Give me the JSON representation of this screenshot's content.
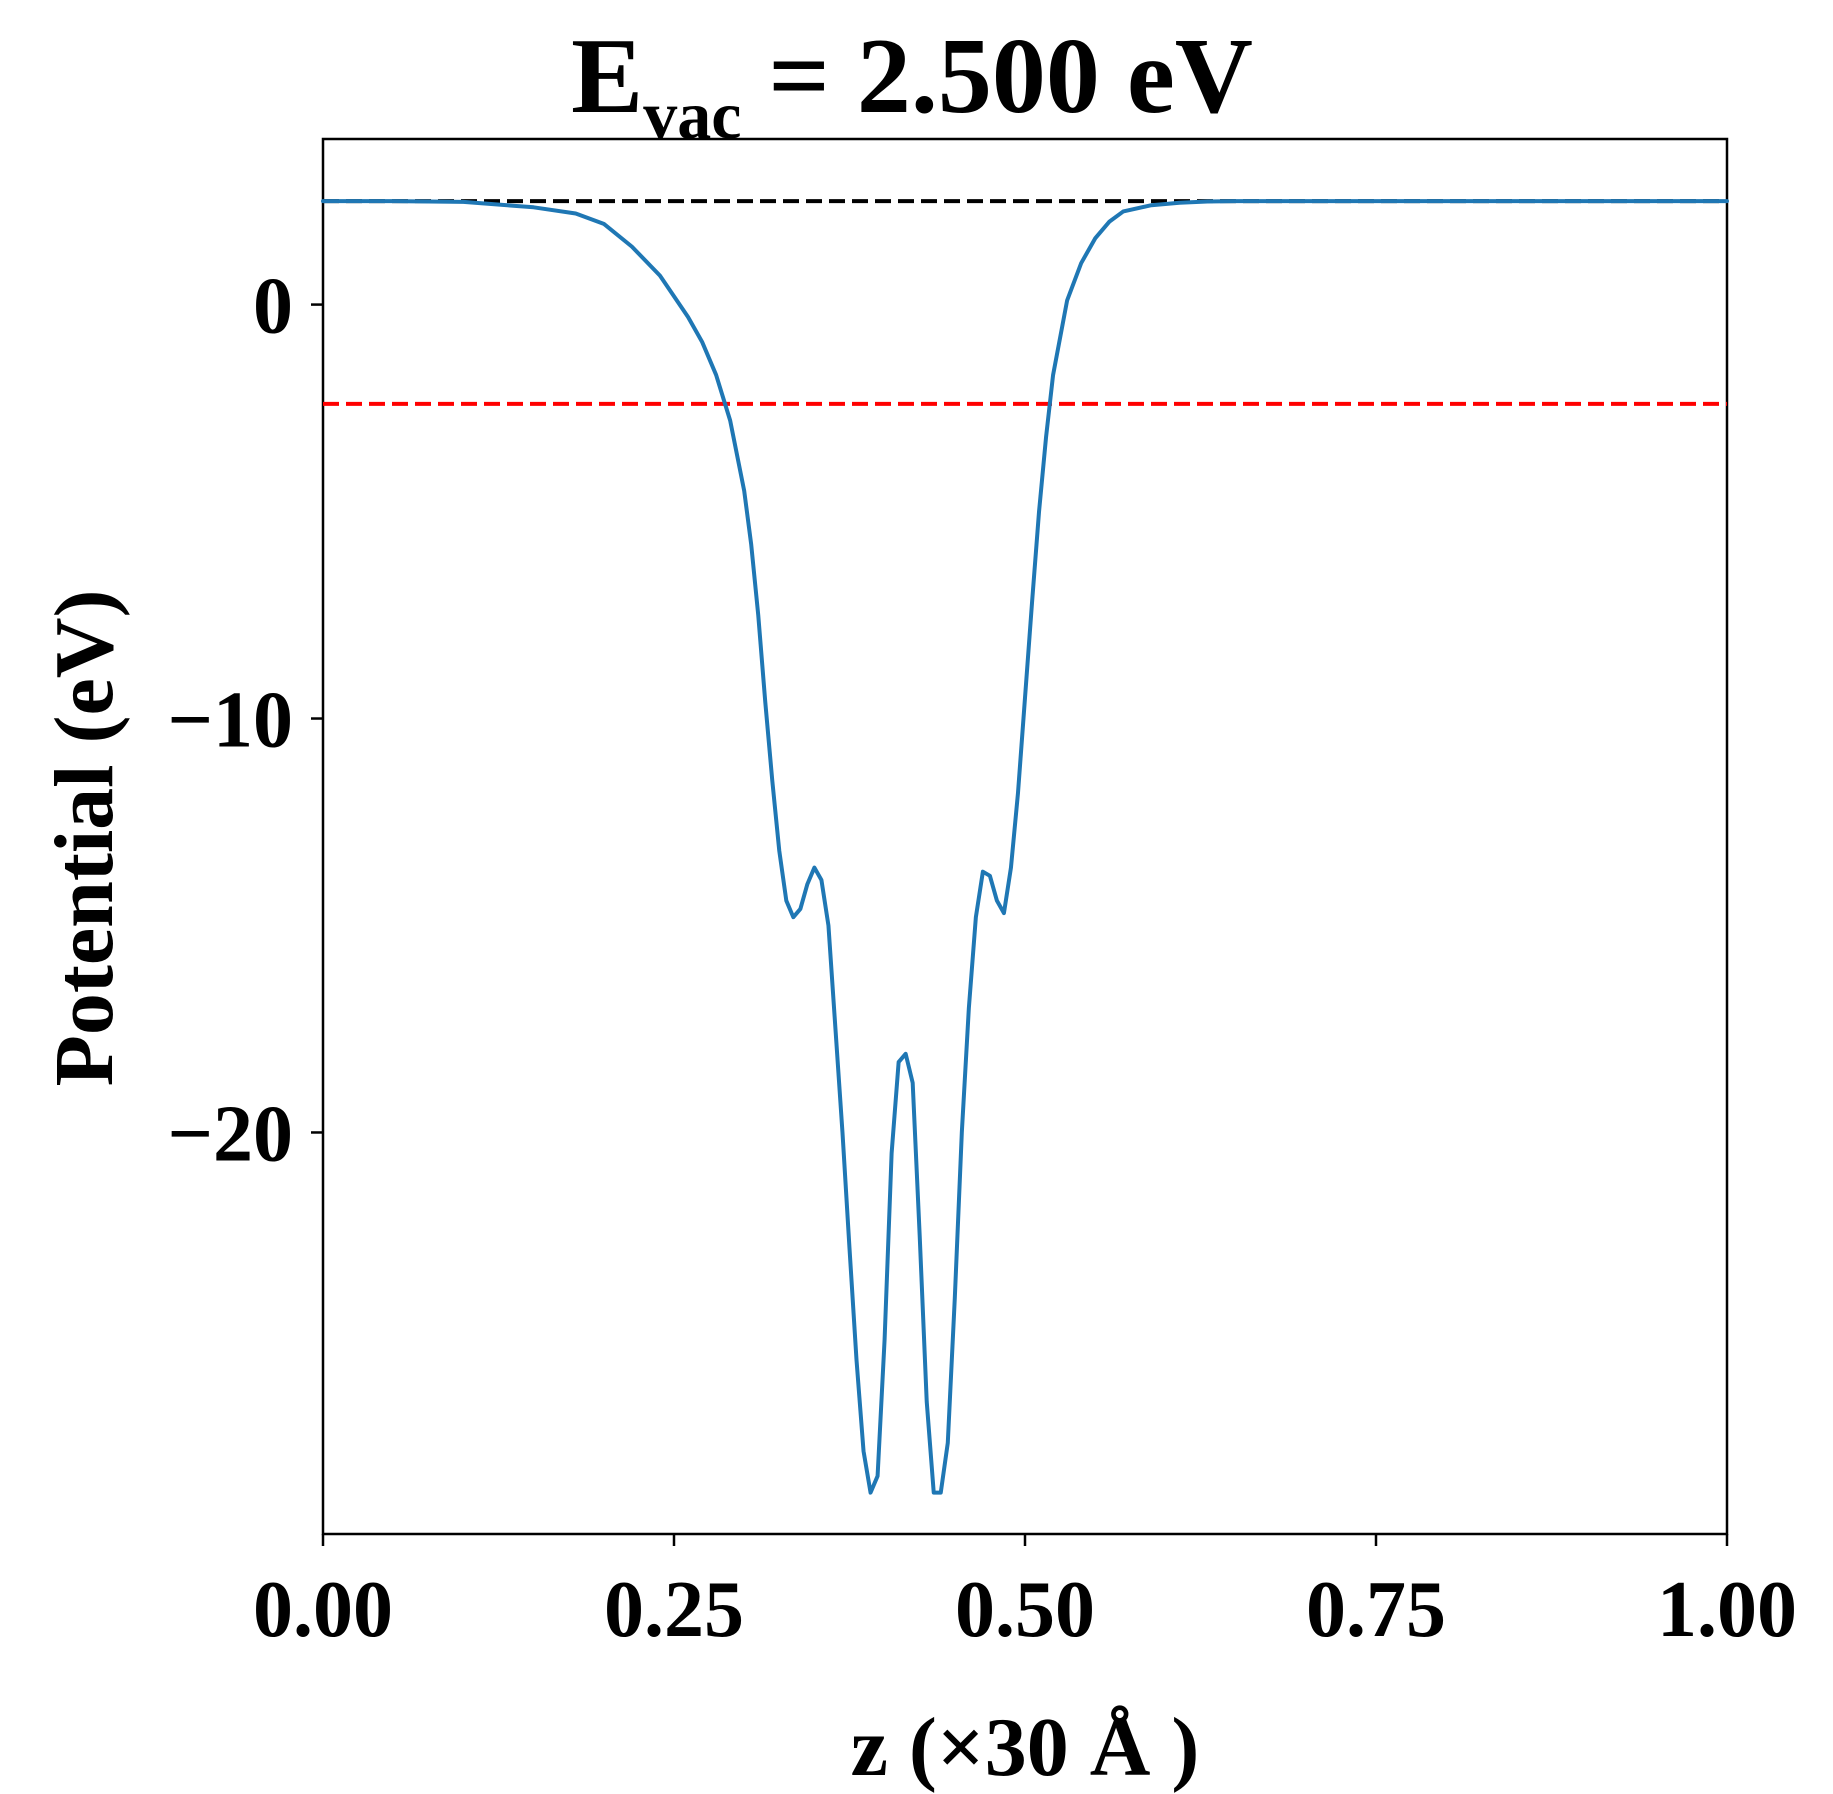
{
  "title": {
    "main": "E",
    "subscript": "vac",
    "rest": " = 2.500 eV"
  },
  "chart_data": {
    "type": "line",
    "title": "E_vac = 2.500 eV",
    "xlabel": "z (×30 Å )",
    "ylabel": "Potential (eV)",
    "xlim": [
      0.0,
      1.0
    ],
    "ylim": [
      -29.7,
      4.0
    ],
    "grid": false,
    "x_ticks": [
      0.0,
      0.25,
      0.5,
      0.75,
      1.0
    ],
    "x_tick_labels": [
      "0.00",
      "0.25",
      "0.50",
      "0.75",
      "1.00"
    ],
    "y_ticks": [
      0,
      -10,
      -20
    ],
    "y_tick_labels": [
      "0",
      "−10",
      "−20"
    ],
    "series": [
      {
        "color": "#1f77b4",
        "style": "solid",
        "x": [
          0.0,
          0.05,
          0.1,
          0.15,
          0.18,
          0.2,
          0.22,
          0.24,
          0.26,
          0.27,
          0.28,
          0.29,
          0.3,
          0.305,
          0.31,
          0.315,
          0.32,
          0.325,
          0.33,
          0.335,
          0.34,
          0.345,
          0.35,
          0.355,
          0.36,
          0.365,
          0.37,
          0.375,
          0.38,
          0.385,
          0.39,
          0.395,
          0.4,
          0.405,
          0.41,
          0.415,
          0.42,
          0.425,
          0.43,
          0.435,
          0.44,
          0.445,
          0.45,
          0.455,
          0.46,
          0.465,
          0.47,
          0.475,
          0.48,
          0.485,
          0.49,
          0.495,
          0.5,
          0.505,
          0.51,
          0.515,
          0.52,
          0.53,
          0.54,
          0.55,
          0.56,
          0.57,
          0.59,
          0.61,
          0.63,
          0.65,
          0.7,
          0.75,
          0.8,
          0.85,
          0.9,
          0.95,
          1.0
        ],
        "y": [
          2.5,
          2.5,
          2.48,
          2.35,
          2.2,
          1.95,
          1.4,
          0.7,
          -0.3,
          -0.9,
          -1.7,
          -2.8,
          -4.5,
          -5.8,
          -7.5,
          -9.6,
          -11.5,
          -13.2,
          -14.4,
          -14.8,
          -14.6,
          -14.0,
          -13.6,
          -13.9,
          -15.0,
          -17.5,
          -20.0,
          -22.8,
          -25.5,
          -27.7,
          -28.7,
          -28.3,
          -25.0,
          -20.5,
          -18.3,
          -18.1,
          -18.8,
          -22.5,
          -26.5,
          -28.7,
          -28.7,
          -27.5,
          -24.0,
          -20.0,
          -17.0,
          -14.8,
          -13.7,
          -13.8,
          -14.4,
          -14.7,
          -13.6,
          -11.8,
          -9.5,
          -7.2,
          -5.0,
          -3.2,
          -1.7,
          0.1,
          1.0,
          1.6,
          2.0,
          2.25,
          2.4,
          2.46,
          2.49,
          2.5,
          2.5,
          2.5,
          2.5,
          2.5,
          2.5,
          2.5,
          2.5
        ]
      },
      {
        "color": "#000000",
        "style": "dashed",
        "x": [
          0.0,
          1.0
        ],
        "y": [
          2.5,
          2.5
        ]
      },
      {
        "color": "#ff0000",
        "style": "dashed",
        "x": [
          0.0,
          1.0
        ],
        "y": [
          -2.4,
          -2.4
        ]
      }
    ]
  }
}
